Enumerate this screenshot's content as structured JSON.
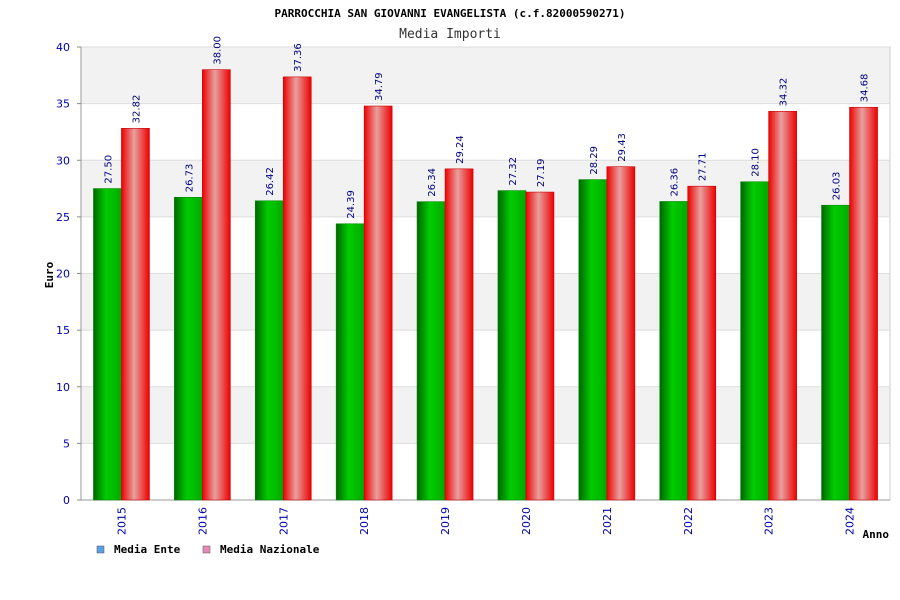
{
  "chart_data": {
    "type": "bar",
    "title": "PARROCCHIA SAN GIOVANNI EVANGELISTA (c.f.82000590271)",
    "subtitle": "Media Importi",
    "xlabel": "Anno",
    "ylabel": "Euro",
    "ylim": [
      0,
      40
    ],
    "yticks": [
      0,
      5,
      10,
      15,
      20,
      25,
      30,
      35,
      40
    ],
    "grid": true,
    "legend_position": "bottom-left",
    "categories": [
      "2015",
      "2016",
      "2017",
      "2018",
      "2019",
      "2020",
      "2021",
      "2022",
      "2023",
      "2024"
    ],
    "series": [
      {
        "name": "Media Ente",
        "color": "#00aa00",
        "legend_color": "#5aa0e6",
        "values": [
          27.5,
          26.73,
          26.42,
          24.39,
          26.34,
          27.32,
          28.29,
          26.36,
          28.1,
          26.03
        ],
        "labels": [
          "27.50",
          "26.73",
          "26.42",
          "24.39",
          "26.34",
          "27.32",
          "28.29",
          "26.36",
          "28.10",
          "26.03"
        ]
      },
      {
        "name": "Media Nazionale",
        "color": "#ee0000",
        "legend_color": "#e68ab4",
        "values": [
          32.82,
          38.0,
          37.36,
          34.79,
          29.24,
          27.19,
          29.43,
          27.71,
          34.32,
          34.68
        ],
        "labels": [
          "32.82",
          "38.00",
          "37.36",
          "34.79",
          "29.24",
          "27.19",
          "29.43",
          "27.71",
          "34.32",
          "34.68"
        ]
      }
    ]
  }
}
